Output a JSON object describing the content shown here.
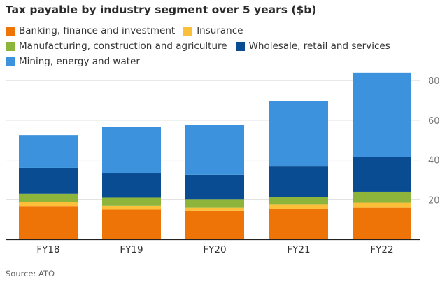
{
  "chart_data": {
    "type": "bar",
    "stacked": true,
    "title": "Tax payable by industry segment over 5 years ($b)",
    "categories": [
      "FY18",
      "FY19",
      "FY20",
      "FY21",
      "FY22"
    ],
    "series": [
      {
        "name": "Banking, finance and investment",
        "color": "#ef7408",
        "values": [
          16.5,
          15.0,
          14.5,
          15.5,
          16.0
        ]
      },
      {
        "name": "Insurance",
        "color": "#fbbf3a",
        "values": [
          2.5,
          2.0,
          1.5,
          2.0,
          2.5
        ]
      },
      {
        "name": "Manufacturing, construction and agriculture",
        "color": "#8db43b",
        "values": [
          4.0,
          4.0,
          4.0,
          4.0,
          5.5
        ]
      },
      {
        "name": "Wholesale, retail and services",
        "color": "#0a4c92",
        "values": [
          13.0,
          12.5,
          12.5,
          15.5,
          17.5
        ]
      },
      {
        "name": "Mining, energy and water",
        "color": "#3c92dc",
        "values": [
          16.5,
          23.0,
          25.0,
          32.5,
          42.5
        ]
      }
    ],
    "ylim": [
      0,
      85
    ],
    "yticks": [
      20,
      40,
      60,
      80
    ],
    "legend_position": "top-left",
    "source": "Source: ATO"
  }
}
